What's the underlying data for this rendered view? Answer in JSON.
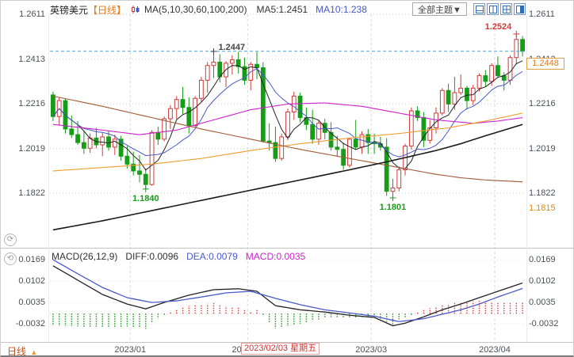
{
  "header": {
    "symbol": "英镑美元",
    "period_tag": "【日线】",
    "ma_label": "MA(5,10,30,60,100,200)",
    "ma5_label": "MA5:1.2451",
    "ma10_label": "MA10:1.238",
    "theme_button": "全部主题▼",
    "layout_icons": [
      "layout-split-horizontal-icon",
      "layout-split-vertical-icon",
      "layout-grid-icon",
      "layout-sidebar-icon"
    ]
  },
  "tools": {
    "left_buttons": [
      {
        "name": "refresh-tool",
        "glyph": "⟳"
      },
      {
        "name": "cycle-tool",
        "glyph": "⟲"
      }
    ]
  },
  "footer": {
    "period_label": "日线",
    "period_arrow": "▲"
  },
  "macd_header": {
    "title": "MACD(26,12,9)",
    "diff": "DIFF:0.0096",
    "dea": "DEA:0.0079",
    "macd": "MACD:0.0035"
  },
  "price_tag": "1.2448",
  "axis": {
    "price_labels": [
      "1.2611",
      "1.2413",
      "1.2216",
      "1.2019",
      "1.1822"
    ],
    "price_values": [
      1.2611,
      1.2413,
      1.2216,
      1.2019,
      1.1822
    ],
    "macd_labels": [
      "0.0169",
      "0.0102",
      "0.0035",
      "-0.0032"
    ],
    "macd_values": [
      0.0169,
      0.0102,
      0.0035,
      -0.0032
    ],
    "low_tag": "1.1815"
  },
  "colors": {
    "up": "#d23a3a",
    "down": "#169c16",
    "ma5": "#222222",
    "ma10": "#4959c8",
    "diff": "#222222",
    "dea": "#4959c8",
    "hist_pos": "#e03838",
    "hist_neg": "#169c16",
    "current_line": "#4aa3e0",
    "tag_text": "#d87a16"
  },
  "chart_data": {
    "type": "candlestick",
    "symbol": "GBP/USD 英镑美元",
    "period": "日线",
    "current_price": 1.2448,
    "candles": [
      [
        1.2255,
        1.227,
        1.214,
        1.216
      ],
      [
        1.216,
        1.2245,
        1.212,
        1.223
      ],
      [
        1.223,
        1.224,
        1.2085,
        1.2105
      ],
      [
        1.2105,
        1.2165,
        1.2065,
        1.208
      ],
      [
        1.208,
        1.214,
        1.2035,
        1.2045
      ],
      [
        1.2045,
        1.2095,
        1.1995,
        1.202
      ],
      [
        1.202,
        1.2085,
        1.2,
        1.2065
      ],
      [
        1.2065,
        1.211,
        1.202,
        1.2035
      ],
      [
        1.2035,
        1.209,
        1.1985,
        1.207
      ],
      [
        1.207,
        1.2095,
        1.201,
        1.2025
      ],
      [
        1.2025,
        1.208,
        1.199,
        1.206
      ],
      [
        1.206,
        1.2075,
        1.1965,
        1.1985
      ],
      [
        1.1985,
        1.203,
        1.193,
        1.195
      ],
      [
        1.195,
        1.2005,
        1.19,
        1.192
      ],
      [
        1.192,
        1.199,
        1.187,
        1.1905
      ],
      [
        1.1905,
        1.193,
        1.184,
        1.186
      ],
      [
        1.186,
        1.21,
        1.1855,
        1.209
      ],
      [
        1.209,
        1.2115,
        1.2035,
        1.206
      ],
      [
        1.206,
        1.216,
        1.205,
        1.215
      ],
      [
        1.215,
        1.221,
        1.2105,
        1.2195
      ],
      [
        1.2195,
        1.225,
        1.215,
        1.2235
      ],
      [
        1.2235,
        1.229,
        1.217,
        1.22
      ],
      [
        1.22,
        1.2245,
        1.2085,
        1.212
      ],
      [
        1.212,
        1.225,
        1.211,
        1.224
      ],
      [
        1.224,
        1.2335,
        1.2225,
        1.232
      ],
      [
        1.232,
        1.24,
        1.2265,
        1.2385
      ],
      [
        1.2385,
        1.2447,
        1.233,
        1.24
      ],
      [
        1.24,
        1.2435,
        1.231,
        1.2335
      ],
      [
        1.2335,
        1.2405,
        1.229,
        1.2395
      ],
      [
        1.2395,
        1.243,
        1.2345,
        1.241
      ],
      [
        1.241,
        1.2445,
        1.235,
        1.238
      ],
      [
        1.238,
        1.242,
        1.23,
        1.232
      ],
      [
        1.232,
        1.24,
        1.2275,
        1.239
      ],
      [
        1.239,
        1.2445,
        1.2325,
        1.2375
      ],
      [
        1.2375,
        1.24,
        1.2045,
        1.2052
      ],
      [
        1.2052,
        1.213,
        1.201,
        1.2045
      ],
      [
        1.2045,
        1.2115,
        1.196,
        1.1975
      ],
      [
        1.1975,
        1.2085,
        1.1965,
        1.207
      ],
      [
        1.207,
        1.2195,
        1.2055,
        1.218
      ],
      [
        1.218,
        1.227,
        1.2145,
        1.225
      ],
      [
        1.225,
        1.2265,
        1.2135,
        1.2155
      ],
      [
        1.2155,
        1.22,
        1.21,
        1.2125
      ],
      [
        1.2125,
        1.219,
        1.204,
        1.206
      ],
      [
        1.206,
        1.2145,
        1.2035,
        1.213
      ],
      [
        1.213,
        1.215,
        1.206,
        1.209
      ],
      [
        1.209,
        1.2135,
        1.201,
        1.2025
      ],
      [
        1.2025,
        1.2075,
        1.1985,
        1.2015
      ],
      [
        1.2015,
        1.2045,
        1.1925,
        1.1945
      ],
      [
        1.1945,
        1.2065,
        1.1935,
        1.206
      ],
      [
        1.206,
        1.2145,
        1.2015,
        1.2025
      ],
      [
        1.2025,
        1.2095,
        1.1995,
        1.208
      ],
      [
        1.208,
        1.2105,
        1.1995,
        1.2045
      ],
      [
        1.2045,
        1.2085,
        1.1995,
        1.204
      ],
      [
        1.204,
        1.207,
        1.201,
        1.2025
      ],
      [
        1.2025,
        1.2065,
        1.181,
        1.183
      ],
      [
        1.183,
        1.1885,
        1.1801,
        1.1845
      ],
      [
        1.1845,
        1.194,
        1.183,
        1.1925
      ],
      [
        1.1925,
        1.204,
        1.19,
        1.203
      ],
      [
        1.203,
        1.22,
        1.2015,
        1.2185
      ],
      [
        1.2185,
        1.2205,
        1.214,
        1.2155
      ],
      [
        1.2155,
        1.218,
        1.2025,
        1.2055
      ],
      [
        1.2055,
        1.2145,
        1.204,
        1.211
      ],
      [
        1.211,
        1.22,
        1.2085,
        1.2175
      ],
      [
        1.2175,
        1.2285,
        1.2165,
        1.2275
      ],
      [
        1.2275,
        1.2305,
        1.218,
        1.2215
      ],
      [
        1.2215,
        1.2335,
        1.219,
        1.2265
      ],
      [
        1.2265,
        1.2345,
        1.2255,
        1.2285
      ],
      [
        1.2285,
        1.2295,
        1.219,
        1.223
      ],
      [
        1.223,
        1.23,
        1.221,
        1.2285
      ],
      [
        1.2285,
        1.235,
        1.227,
        1.234
      ],
      [
        1.234,
        1.2365,
        1.229,
        1.2315
      ],
      [
        1.2315,
        1.2395,
        1.2295,
        1.2385
      ],
      [
        1.2385,
        1.2425,
        1.233,
        1.234
      ],
      [
        1.234,
        1.2355,
        1.2275,
        1.232
      ],
      [
        1.232,
        1.243,
        1.23,
        1.242
      ],
      [
        1.242,
        1.2524,
        1.239,
        1.25
      ],
      [
        1.25,
        1.2515,
        1.2425,
        1.2448
      ]
    ],
    "month_breaks": [
      {
        "index": 13,
        "label": "2023/01"
      },
      {
        "index": 32,
        "label": "2023/02"
      },
      {
        "index": 52,
        "label": "2023/03"
      },
      {
        "index": 72,
        "label": "2023/04"
      }
    ],
    "crosshair": {
      "index": 34,
      "label": "2023/02/03 星期五"
    },
    "annotations": [
      {
        "index": 26,
        "price": 1.2447,
        "label": "1.2447",
        "color": "#444444",
        "placement": "above-right"
      },
      {
        "index": 75,
        "price": 1.2524,
        "label": "1.2524",
        "color": "#d23a3a",
        "placement": "above-left"
      },
      {
        "index": 15,
        "price": 1.184,
        "label": "1.1840",
        "color": "#169c16",
        "placement": "below"
      },
      {
        "index": 55,
        "price": 1.1801,
        "label": "1.1801",
        "color": "#169c16",
        "placement": "below"
      }
    ],
    "overlays": [
      {
        "name": "MA30",
        "color": "#cc22cc",
        "width": 1.1,
        "anchors": [
          [
            0,
            1.2125
          ],
          [
            8,
            1.21
          ],
          [
            14,
            1.208
          ],
          [
            20,
            1.21
          ],
          [
            26,
            1.2145
          ],
          [
            32,
            1.219
          ],
          [
            38,
            1.2215
          ],
          [
            44,
            1.222
          ],
          [
            50,
            1.2205
          ],
          [
            56,
            1.2175
          ],
          [
            62,
            1.2145
          ],
          [
            68,
            1.213
          ],
          [
            72,
            1.214
          ],
          [
            76,
            1.2155
          ]
        ]
      },
      {
        "name": "MA60",
        "color": "#f09c2e",
        "width": 1.1,
        "anchors": [
          [
            0,
            1.192
          ],
          [
            8,
            1.1935
          ],
          [
            16,
            1.195
          ],
          [
            24,
            1.1975
          ],
          [
            32,
            1.201
          ],
          [
            40,
            1.204
          ],
          [
            48,
            1.2065
          ],
          [
            56,
            1.2085
          ],
          [
            64,
            1.211
          ],
          [
            70,
            1.214
          ],
          [
            76,
            1.2175
          ]
        ]
      },
      {
        "name": "MA100",
        "color": "#a05a35",
        "width": 1.1,
        "anchors": [
          [
            0,
            1.225
          ],
          [
            8,
            1.2205
          ],
          [
            16,
            1.2155
          ],
          [
            24,
            1.2105
          ],
          [
            32,
            1.206
          ],
          [
            40,
            1.2015
          ],
          [
            48,
            1.1975
          ],
          [
            54,
            1.1945
          ],
          [
            58,
            1.1925
          ],
          [
            62,
            1.1905
          ],
          [
            66,
            1.189
          ],
          [
            70,
            1.188
          ],
          [
            76,
            1.1872
          ]
        ]
      },
      {
        "name": "MA200",
        "color": "#1a1a1a",
        "width": 1.6,
        "anchors": [
          [
            0,
            1.166
          ],
          [
            8,
            1.17
          ],
          [
            16,
            1.1745
          ],
          [
            24,
            1.179
          ],
          [
            32,
            1.1835
          ],
          [
            40,
            1.188
          ],
          [
            48,
            1.1925
          ],
          [
            54,
            1.196
          ],
          [
            58,
            1.1985
          ],
          [
            62,
            1.201
          ],
          [
            66,
            1.204
          ],
          [
            70,
            1.2075
          ],
          [
            73,
            1.21
          ],
          [
            76,
            1.2125
          ]
        ]
      }
    ],
    "macd": {
      "params": "26,12,9",
      "diff_anchors": [
        [
          0,
          0.015
        ],
        [
          4,
          0.0105
        ],
        [
          8,
          0.006
        ],
        [
          12,
          0.003
        ],
        [
          15,
          0.0015
        ],
        [
          18,
          0.0035
        ],
        [
          22,
          0.0058
        ],
        [
          26,
          0.0075
        ],
        [
          30,
          0.0078
        ],
        [
          33,
          0.007
        ],
        [
          36,
          0.0025
        ],
        [
          40,
          0.0012
        ],
        [
          44,
          0.0005
        ],
        [
          48,
          -0.0005
        ],
        [
          52,
          -0.0012
        ],
        [
          55,
          -0.0038
        ],
        [
          57,
          -0.003
        ],
        [
          60,
          -0.001
        ],
        [
          63,
          0.0012
        ],
        [
          66,
          0.003
        ],
        [
          69,
          0.005
        ],
        [
          72,
          0.007
        ],
        [
          76,
          0.0096
        ]
      ],
      "dea_anchors": [
        [
          0,
          0.0169
        ],
        [
          4,
          0.0125
        ],
        [
          8,
          0.0082
        ],
        [
          12,
          0.005
        ],
        [
          16,
          0.0035
        ],
        [
          20,
          0.004
        ],
        [
          24,
          0.0052
        ],
        [
          28,
          0.0065
        ],
        [
          32,
          0.007
        ],
        [
          36,
          0.0048
        ],
        [
          40,
          0.0028
        ],
        [
          44,
          0.0012
        ],
        [
          48,
          0.0002
        ],
        [
          52,
          -0.0008
        ],
        [
          56,
          -0.0025
        ],
        [
          60,
          -0.0016
        ],
        [
          63,
          -0.0002
        ],
        [
          66,
          0.0012
        ],
        [
          69,
          0.003
        ],
        [
          72,
          0.0052
        ],
        [
          76,
          0.0079
        ]
      ]
    }
  }
}
